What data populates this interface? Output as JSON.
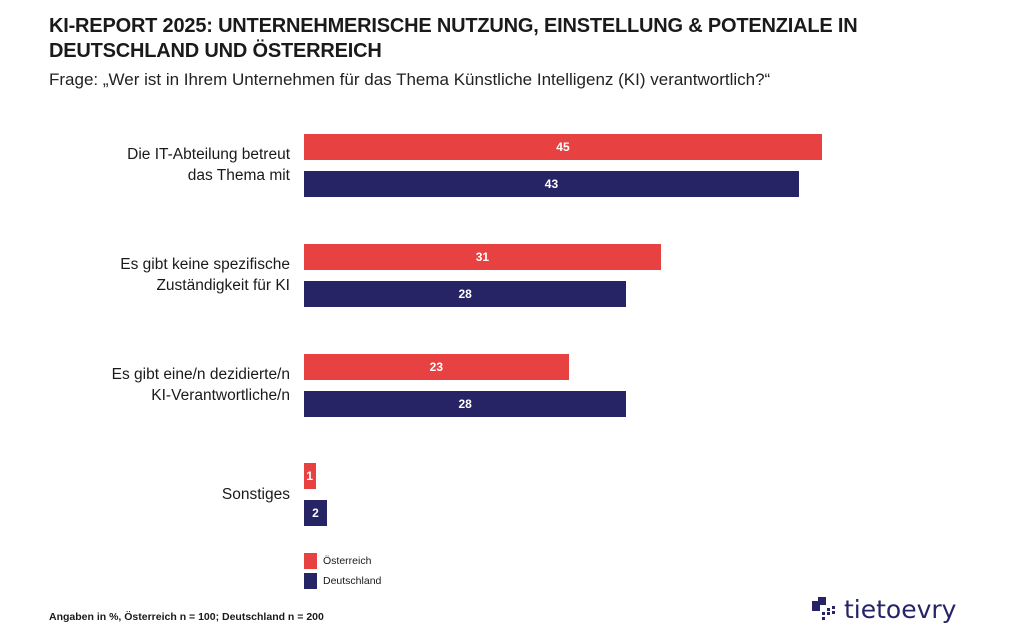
{
  "header": {
    "title": "KI-REPORT 2025: UNTERNEHMERISCHE NUTZUNG, EINSTELLUNG & POTENZIALE IN DEUTSCHLAND UND ÖSTERREICH",
    "subtitle": "Frage: „Wer ist in Ihrem Unternehmen für das Thema Künstliche Intelligenz (KI) verantwortlich?“"
  },
  "chart_data": {
    "type": "bar",
    "orientation": "horizontal",
    "categories": [
      [
        "Die IT-Abteilung betreut",
        "das Thema mit"
      ],
      [
        "Es gibt keine spezifische",
        "Zuständigkeit für KI"
      ],
      [
        "Es gibt eine/n dezidierte/n",
        "KI-Verantwortliche/n"
      ],
      [
        "Sonstiges"
      ]
    ],
    "series": [
      {
        "name": "Österreich",
        "color": "#e84142",
        "values": [
          45,
          31,
          23,
          1
        ]
      },
      {
        "name": "Deutschland",
        "color": "#272466",
        "values": [
          43,
          28,
          28,
          2
        ]
      }
    ],
    "legend": "bottom-left",
    "grid": false,
    "unit": "%"
  },
  "footer": {
    "note": "Angaben in %, Österreich n = 100; Deutschland n = 200",
    "logo": "tietoevry"
  }
}
